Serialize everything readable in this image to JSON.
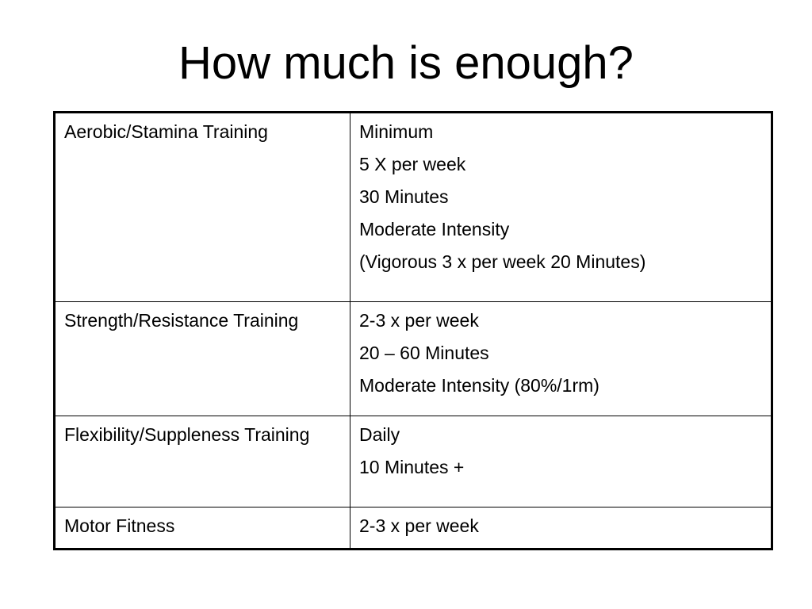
{
  "slide": {
    "title": "How much is enough?"
  },
  "table": {
    "rows": [
      {
        "category": "Aerobic/Stamina Training",
        "details": [
          "Minimum",
          "5 X per week",
          "30 Minutes",
          "Moderate Intensity",
          "(Vigorous 3 x per week 20 Minutes)"
        ]
      },
      {
        "category": "Strength/Resistance Training",
        "details": [
          "2-3 x per week",
          "20 – 60 Minutes",
          "Moderate Intensity (80%/1rm)"
        ]
      },
      {
        "category": "Flexibility/Suppleness Training",
        "details": [
          "Daily",
          "10 Minutes +"
        ]
      },
      {
        "category": "Motor Fitness",
        "details": [
          "2-3 x per week"
        ]
      }
    ]
  }
}
